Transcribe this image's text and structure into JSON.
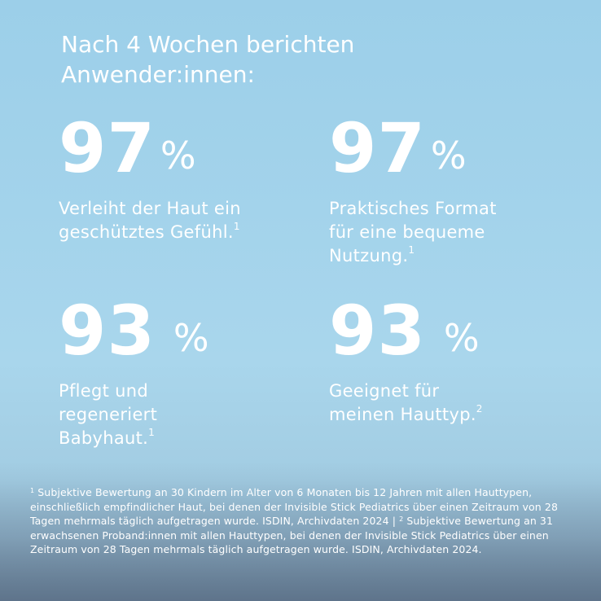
{
  "headline": "Nach 4 Wochen berichten Anwender:innen:",
  "stats": [
    {
      "number": "97",
      "percent": "%",
      "desc_line1": "Verleiht der Haut ein",
      "desc_line2": "geschütztes Gefühl.",
      "desc_line3": "",
      "sup": "1"
    },
    {
      "number": "97",
      "percent": "%",
      "desc_line1": "Praktisches Format",
      "desc_line2": "für eine bequeme",
      "desc_line3": "Nutzung.",
      "sup": "1"
    },
    {
      "number": "93",
      "percent": "%",
      "desc_line1": "Pflegt und",
      "desc_line2": "regeneriert",
      "desc_line3": "Babyhaut.",
      "sup": "1"
    },
    {
      "number": "93",
      "percent": "%",
      "desc_line1": "Geeignet für",
      "desc_line2": "meinen Hauttyp.",
      "desc_line3": "",
      "sup": "2"
    }
  ],
  "footnote": {
    "sup1": "1",
    "text1": " Subjektive Bewertung an 30 Kindern im Alter von 6 Monaten bis 12 Jahren mit allen Hauttypen, einschließlich empfindlicher Haut, bei denen der Invisible Stick Pediatrics über einen Zeitraum von 28 Tagen mehrmals täglich aufgetragen wurde. ISDIN, Archivdaten 2024 | ",
    "sup2": "2",
    "text2": " Subjektive Bewertung an 31 erwachsenen Proband:innen mit allen Hauttypen, bei denen der Invisible Stick Pediatrics über einen Zeitraum von 28 Tagen mehrmals täglich aufgetragen wurde. ISDIN, Archivdaten 2024."
  }
}
